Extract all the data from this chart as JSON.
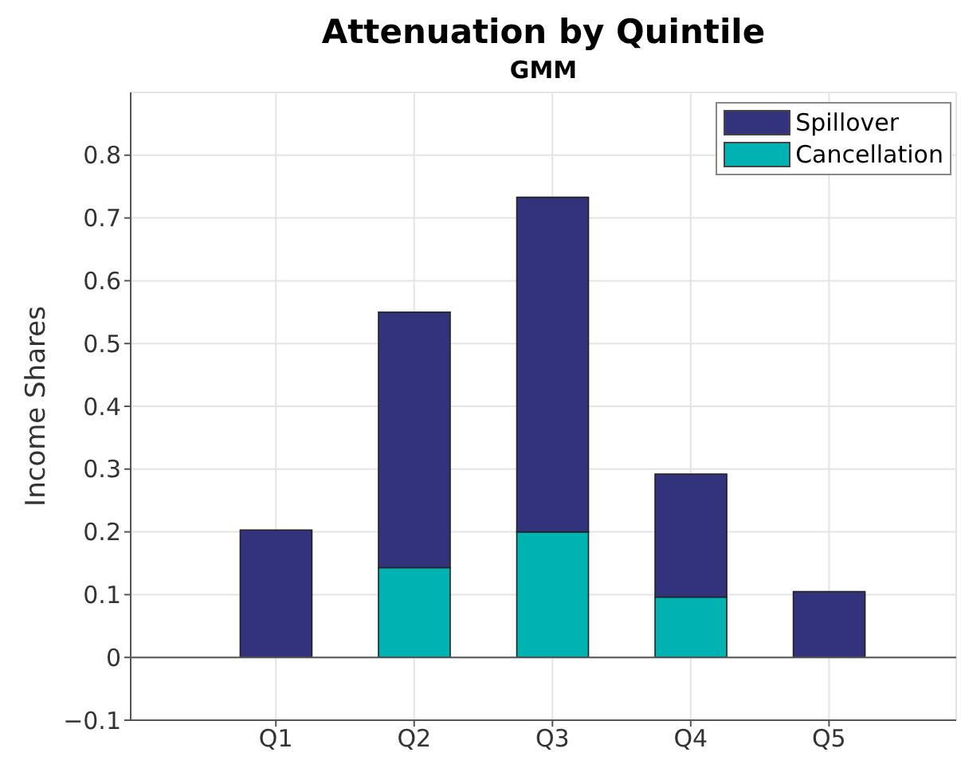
{
  "chart_data": {
    "type": "bar",
    "title": "Attenuation by Quintile",
    "subtitle": "GMM",
    "ylabel": "Income Shares",
    "categories": [
      "Q1",
      "Q2",
      "Q3",
      "Q4",
      "Q5"
    ],
    "stacked": true,
    "series": [
      {
        "name": "Cancellation",
        "color": "#00b2b2",
        "values": [
          0,
          0.143,
          0.2,
          0.096,
          0
        ]
      },
      {
        "name": "Spillover",
        "color": "#33337d",
        "values": [
          0.203,
          0.407,
          0.533,
          0.196,
          0.105
        ]
      }
    ],
    "ylim": [
      -0.1,
      0.9
    ],
    "yticks": [
      -0.1,
      0,
      0.1,
      0.2,
      0.3,
      0.4,
      0.5,
      0.6,
      0.7,
      0.8
    ],
    "grid": true,
    "legend": "top right",
    "ref_lines": [
      {
        "axis": "y",
        "value": 0,
        "color": "#555555"
      }
    ]
  }
}
